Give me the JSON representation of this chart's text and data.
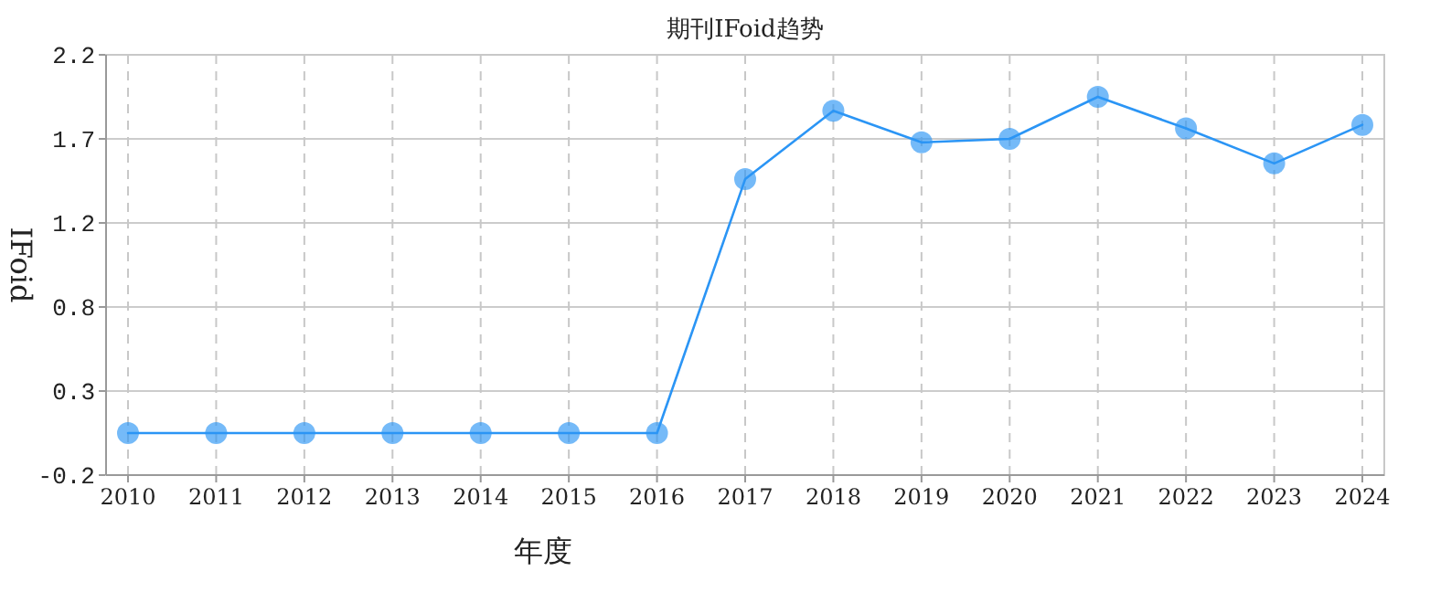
{
  "chart_data": {
    "type": "line",
    "title": "期刊IFoid趋势",
    "xlabel": "年度",
    "ylabel": "IFoid",
    "categories": [
      "2010",
      "2011",
      "2012",
      "2013",
      "2014",
      "2015",
      "2016",
      "2017",
      "2018",
      "2019",
      "2020",
      "2021",
      "2022",
      "2023",
      "2024"
    ],
    "series": [
      {
        "color": "#2b95f5",
        "values": [
          0.04,
          0.04,
          0.04,
          0.04,
          0.04,
          0.04,
          0.04,
          1.49,
          1.88,
          1.7,
          1.72,
          1.96,
          1.78,
          1.58,
          1.8
        ]
      }
    ],
    "ylim": [
      -0.2,
      2.2
    ],
    "yticks": [
      -0.2,
      {
        "value": 0.28,
        "label": "0.3"
      },
      {
        "value": 0.76,
        "label": "0.8"
      },
      {
        "value": 1.24,
        "label": "1.2"
      },
      {
        "value": 1.72,
        "label": "1.7"
      },
      2.2
    ],
    "grid": true,
    "marker": "circle",
    "line_style": "solid"
  }
}
